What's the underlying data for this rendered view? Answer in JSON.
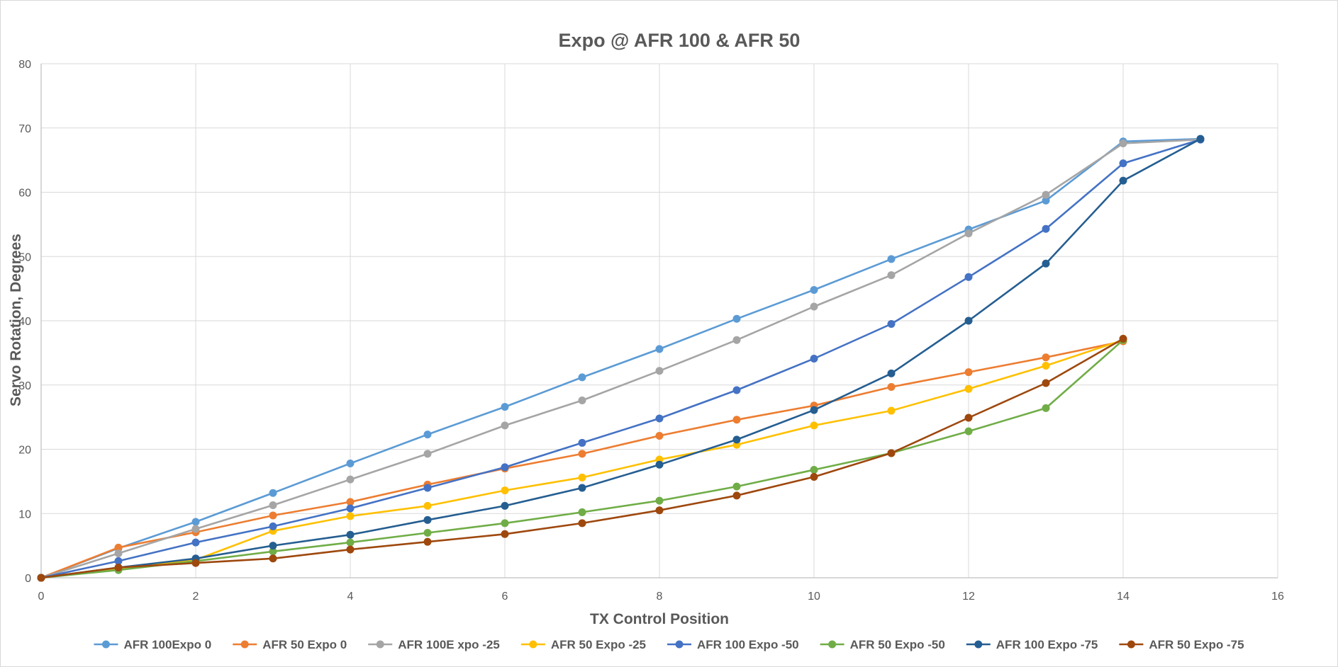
{
  "chart_data": {
    "type": "line",
    "title": "Expo @ AFR 100 & AFR 50",
    "xlabel": "TX Control Position",
    "ylabel": "Servo Rotation, Degrees",
    "xlim": [
      0,
      16
    ],
    "ylim": [
      0,
      80
    ],
    "xticks": [
      0,
      2,
      4,
      6,
      8,
      10,
      12,
      14,
      16
    ],
    "yticks": [
      0,
      10,
      20,
      30,
      40,
      50,
      60,
      70,
      80
    ],
    "grid": true,
    "legend_position": "bottom",
    "series": [
      {
        "name": "AFR 100Expo 0",
        "color": "#5b9bd5",
        "x": [
          0,
          1,
          2,
          3,
          4,
          5,
          6,
          7,
          8,
          9,
          10,
          11,
          12,
          13,
          14,
          15
        ],
        "y": [
          0,
          4.6,
          8.7,
          13.2,
          17.8,
          22.3,
          26.6,
          31.2,
          35.6,
          40.3,
          44.8,
          49.6,
          54.2,
          58.7,
          67.9,
          68.3
        ]
      },
      {
        "name": "AFR 50 Expo 0",
        "color": "#ed7d31",
        "x": [
          0,
          1,
          2,
          3,
          4,
          5,
          6,
          7,
          8,
          9,
          10,
          11,
          12,
          13,
          14
        ],
        "y": [
          0,
          4.7,
          7.1,
          9.7,
          11.8,
          14.5,
          17.0,
          19.3,
          22.1,
          24.6,
          26.8,
          29.7,
          32.0,
          34.3,
          36.8
        ]
      },
      {
        "name": "AFR 100E xpo -25",
        "color": "#a5a5a5",
        "x": [
          0,
          1,
          2,
          3,
          4,
          5,
          6,
          7,
          8,
          9,
          10,
          11,
          12,
          13,
          14,
          15
        ],
        "y": [
          0,
          3.8,
          7.6,
          11.3,
          15.3,
          19.3,
          23.7,
          27.6,
          32.2,
          37.0,
          42.2,
          47.1,
          53.6,
          59.6,
          67.6,
          68.2
        ]
      },
      {
        "name": "AFR 50 Expo -25",
        "color": "#ffc000",
        "x": [
          0,
          1,
          2,
          3,
          4,
          5,
          6,
          7,
          8,
          9,
          10,
          11,
          12,
          13,
          14
        ],
        "y": [
          0,
          1.3,
          2.8,
          7.3,
          9.6,
          11.2,
          13.6,
          15.6,
          18.4,
          20.7,
          23.7,
          26.0,
          29.4,
          33.0,
          37.0
        ]
      },
      {
        "name": "AFR 100 Expo -50",
        "color": "#4472c4",
        "x": [
          0,
          1,
          2,
          3,
          4,
          5,
          6,
          7,
          8,
          9,
          10,
          11,
          12,
          13,
          14,
          15
        ],
        "y": [
          0,
          2.6,
          5.5,
          8.0,
          10.8,
          14.0,
          17.2,
          21.0,
          24.8,
          29.2,
          34.1,
          39.5,
          46.8,
          54.3,
          64.5,
          68.2
        ]
      },
      {
        "name": "AFR 50 Expo -50",
        "color": "#70ad47",
        "x": [
          0,
          1,
          2,
          3,
          4,
          5,
          6,
          7,
          8,
          9,
          10,
          11,
          12,
          13,
          14
        ],
        "y": [
          0,
          1.2,
          2.6,
          4.1,
          5.5,
          7.0,
          8.5,
          10.2,
          12.0,
          14.2,
          16.8,
          19.4,
          22.8,
          26.4,
          37.0
        ]
      },
      {
        "name": "AFR 100 Expo -75",
        "color": "#255e91",
        "x": [
          0,
          1,
          2,
          3,
          4,
          5,
          6,
          7,
          8,
          9,
          10,
          11,
          12,
          13,
          14,
          15
        ],
        "y": [
          0,
          1.6,
          3.0,
          5.0,
          6.7,
          9.0,
          11.2,
          14.0,
          17.6,
          21.5,
          26.1,
          31.8,
          40.0,
          48.9,
          61.8,
          68.3
        ]
      },
      {
        "name": "AFR 50 Expo -75",
        "color": "#9e480e",
        "x": [
          0,
          1,
          2,
          3,
          4,
          5,
          6,
          7,
          8,
          9,
          10,
          11,
          12,
          13,
          14
        ],
        "y": [
          0,
          1.6,
          2.3,
          3.0,
          4.4,
          5.6,
          6.8,
          8.5,
          10.5,
          12.8,
          15.7,
          19.4,
          24.9,
          30.3,
          37.2
        ]
      }
    ]
  }
}
